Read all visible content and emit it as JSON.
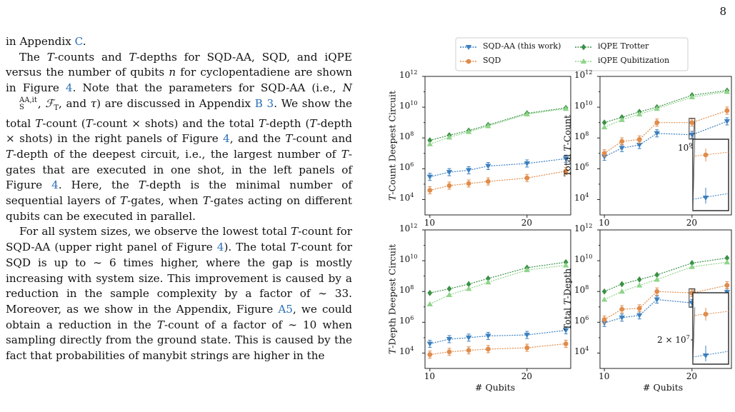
{
  "page": {
    "number": "8"
  },
  "text": {
    "p0": {
      "a": "in Appendix ",
      "a_link": "C",
      "b": "."
    },
    "p1": {
      "a": "The ",
      "a_T": "T",
      "a2": "-counts and ",
      "a_T2": "T",
      "a3": "-depths for SQD-AA, SQD, and iQPE versus the number of qubits ",
      "a_n": "n",
      "a4": " for cyclopentadiene are shown in Figure ",
      "a_link1": "4",
      "a5": ". Note that the parameters for SQD-AA (i.e., ",
      "a_N": "N",
      "a_Nsub": "S",
      "a_Nsup": "AA,it",
      "a6": ", ",
      "a_F": "ℱ",
      "a_Fsub": "T",
      "a7": ", and ",
      "a_tau": "τ",
      "a8": ") are discussed in Appendix ",
      "a_link2": "B 3",
      "a9": ". We show the total ",
      "a_T3": "T",
      "a10": "-count (",
      "a_T4": "T",
      "a11": "-count × shots) and the total ",
      "a_T5": "T",
      "a12": "-depth (",
      "a_T6": "T",
      "a13": "-depth × shots) in the right panels of Figure ",
      "a_link3": "4",
      "a14": ", and the ",
      "a_T7": "T",
      "a15": "-count and ",
      "a_T8": "T",
      "a16": "-depth of the deepest circuit, i.e., the largest number of ",
      "a_T9": "T",
      "a17": "-gates that are executed in one shot, in the left panels of Figure ",
      "a_link4": "4",
      "a18": ". Here, the ",
      "a_T10": "T",
      "a19": "-depth is the minimal number of sequential layers of ",
      "a_T11": "T",
      "a20": "-gates, when ",
      "a_T12": "T",
      "a21": "-gates acting on different qubits can be executed in parallel."
    },
    "p2": {
      "a": "For all system sizes, we observe the lowest total ",
      "a_T": "T",
      "a2": "-count for SQD-AA (upper right panel of Figure ",
      "a_link1": "4",
      "a3": "). The total ",
      "a_T2": "T",
      "a4": "-count for SQD is up to ∼ 6 times higher, where the gap is mostly increasing with system size. This improvement is caused by a reduction in the sample complexity by a factor of ∼ 33. Moreover, as we show in the Appendix, Figure ",
      "a_link2": "A5",
      "a5": ", we could obtain a reduction in the ",
      "a_T3": "T",
      "a6": "-count of a factor of ∼ 10 when sampling directly from the ground state. This is caused by the fact that probabilities of manybit strings are higher in the"
    }
  },
  "figure": {
    "legend": [
      "SQD-AA (this work)",
      "SQD",
      "iQPE Trotter",
      "iQPE Qubitization"
    ],
    "xlabel": "# Qubits",
    "ytick_labels": [
      "10",
      "10",
      "10",
      "10",
      "10"
    ],
    "ytick_exps": [
      "4",
      "6",
      "8",
      "10",
      "12"
    ],
    "xtick_labels": [
      "10",
      "20"
    ],
    "panel_ylabels": {
      "tl": {
        "pre": "",
        "T": "T",
        "post": "-Count Deepest Circuit"
      },
      "tr": {
        "pre": "Total ",
        "T": "T",
        "post": "-Count"
      },
      "bl": {
        "pre": "",
        "T": "T",
        "post": "-Depth Deepest Circuit"
      },
      "br": {
        "pre": "Total ",
        "T": "T",
        "post": "-Depth"
      }
    },
    "inset_labels": {
      "tr": {
        "base": "10",
        "exp": "9"
      },
      "br": {
        "coef": "2 × 10",
        "exp": "7"
      }
    },
    "colors": {
      "sqdaa": "#3b7fbf",
      "sqd": "#e08c4c",
      "trotter": "#3a9145",
      "qub": "#8fd48a"
    }
  },
  "chart_data": [
    {
      "type": "line",
      "panel": "top-left",
      "ylabel": "T-Count Deepest Circuit",
      "xlabel": "",
      "yscale": "log",
      "ylim": [
        1000,
        1000000000000.0
      ],
      "xlim": [
        9.5,
        24.5
      ],
      "x": [
        10,
        12,
        14,
        16,
        20,
        24
      ],
      "series": [
        {
          "name": "SQD-AA (this work)",
          "values": [
            300000,
            600000,
            800000,
            1500000,
            2200000,
            4500000
          ]
        },
        {
          "name": "SQD",
          "values": [
            40000,
            80000,
            110000,
            150000,
            250000,
            700000
          ]
        },
        {
          "name": "iQPE Trotter",
          "values": [
            70000000,
            150000000,
            300000000,
            700000000,
            4000000000,
            9000000000
          ]
        },
        {
          "name": "iQPE Qubitization",
          "values": [
            40000000,
            110000000,
            250000000,
            600000000,
            3500000000,
            8000000000
          ]
        }
      ]
    },
    {
      "type": "line",
      "panel": "top-right",
      "ylabel": "Total T-Count",
      "xlabel": "",
      "yscale": "log",
      "ylim": [
        1000,
        1000000000000.0
      ],
      "xlim": [
        9.5,
        24.5
      ],
      "x": [
        10,
        12,
        14,
        16,
        20,
        24
      ],
      "series": [
        {
          "name": "SQD-AA (this work)",
          "values": [
            6000000,
            22000000,
            35000000,
            200000000,
            160000000,
            1200000000
          ]
        },
        {
          "name": "SQD",
          "values": [
            10000000,
            60000000,
            80000000,
            1000000000,
            1000000000,
            6000000000
          ]
        },
        {
          "name": "iQPE Trotter",
          "values": [
            1000000000,
            2200000000,
            5000000000,
            10000000000,
            60000000000,
            120000000000
          ]
        },
        {
          "name": "iQPE Qubitization",
          "values": [
            500000000,
            1500000000,
            3500000000,
            8000000000,
            45000000000,
            100000000000
          ]
        }
      ]
    },
    {
      "type": "line",
      "panel": "bottom-left",
      "ylabel": "T-Depth Deepest Circuit",
      "xlabel": "# Qubits",
      "yscale": "log",
      "ylim": [
        1000,
        1000000000000.0
      ],
      "xlim": [
        9.5,
        24.5
      ],
      "x": [
        10,
        12,
        14,
        16,
        20,
        24
      ],
      "series": [
        {
          "name": "SQD-AA (this work)",
          "values": [
            40000,
            80000,
            100000,
            130000,
            150000,
            300000
          ]
        },
        {
          "name": "SQD",
          "values": [
            8000,
            12000,
            15000,
            18000,
            22000,
            40000
          ]
        },
        {
          "name": "iQPE Trotter",
          "values": [
            80000000,
            150000000,
            300000000,
            700000000,
            3500000000,
            8000000000
          ]
        },
        {
          "name": "iQPE Qubitization",
          "values": [
            15000000,
            60000000,
            150000000,
            400000000,
            2500000000,
            5000000000
          ]
        }
      ]
    },
    {
      "type": "line",
      "panel": "bottom-right",
      "ylabel": "Total T-Depth",
      "xlabel": "# Qubits",
      "yscale": "log",
      "ylim": [
        1000,
        1000000000000.0
      ],
      "xlim": [
        9.5,
        24.5
      ],
      "x": [
        10,
        12,
        14,
        16,
        20,
        24
      ],
      "series": [
        {
          "name": "SQD-AA (this work)",
          "values": [
            900000,
            2000000,
            2800000,
            30000000,
            18000000,
            90000000
          ]
        },
        {
          "name": "SQD",
          "values": [
            1500000,
            7000000,
            8000000,
            100000000,
            80000000,
            250000000
          ]
        },
        {
          "name": "iQPE Trotter",
          "values": [
            100000000,
            300000000,
            600000000,
            1200000000,
            7000000000,
            15000000000
          ]
        },
        {
          "name": "iQPE Qubitization",
          "values": [
            30000000,
            100000000,
            250000000,
            600000000,
            4000000000,
            8000000000
          ]
        }
      ]
    }
  ]
}
